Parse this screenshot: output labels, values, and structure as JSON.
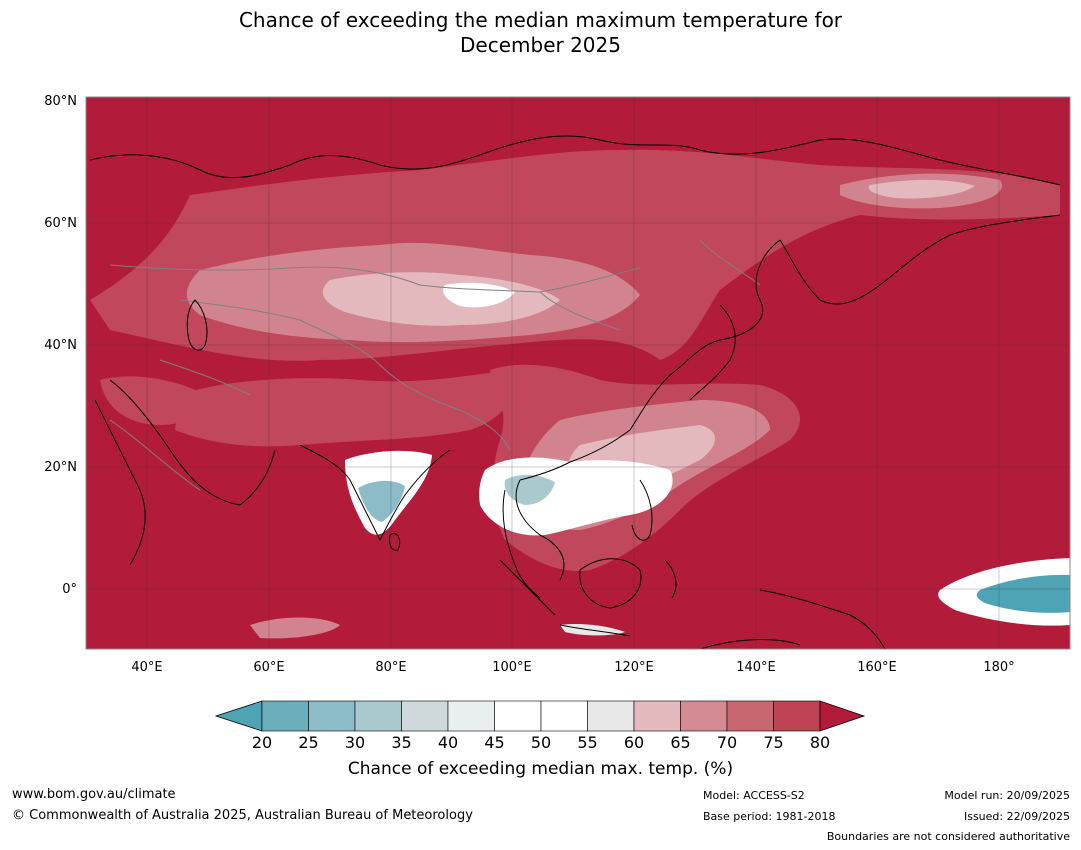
{
  "title_line1": "Chance of exceeding the median maximum temperature for",
  "title_line2": "December 2025",
  "map": {
    "lat_labels": [
      "80°N",
      "60°N",
      "40°N",
      "20°N",
      "0°"
    ],
    "lon_labels": [
      "40°E",
      "60°E",
      "80°E",
      "100°E",
      "120°E",
      "140°E",
      "160°E",
      "180°"
    ],
    "colors": {
      "high": "#b31b3a",
      "mid_high": "#c1475d",
      "mid": "#d1848f",
      "light": "#e3b9be",
      "neutral": "#ffffff",
      "blue": "#4ea3b4",
      "coast": "#000000",
      "border": "#808080"
    }
  },
  "colorbar": {
    "ticks": [
      "20",
      "25",
      "30",
      "35",
      "40",
      "45",
      "50",
      "55",
      "60",
      "65",
      "70",
      "75",
      "80"
    ],
    "colors": [
      "#6aaebc",
      "#8bbcc8",
      "#a9c9cf",
      "#cfd9dc",
      "#e9eff0",
      "#ffffff",
      "#ffffff",
      "#e8e8e8",
      "#e3b9be",
      "#d48b94",
      "#c8676f",
      "#bf4453"
    ],
    "low_arrow_color": "#4ea3b4",
    "high_arrow_color": "#b31b3a",
    "label": "Chance of exceeding median max. temp. (%)"
  },
  "footer": {
    "url": "www.bom.gov.au/climate",
    "copyright": "© Commonwealth of Australia 2025, Australian Bureau of Meteorology",
    "model": "Model: ACCESS-S2",
    "base_period": "Base period: 1981-2018",
    "model_run": "Model run: 20/09/2025",
    "issued": "Issued: 22/09/2025",
    "disclaimer": "Boundaries are not considered authoritative"
  }
}
